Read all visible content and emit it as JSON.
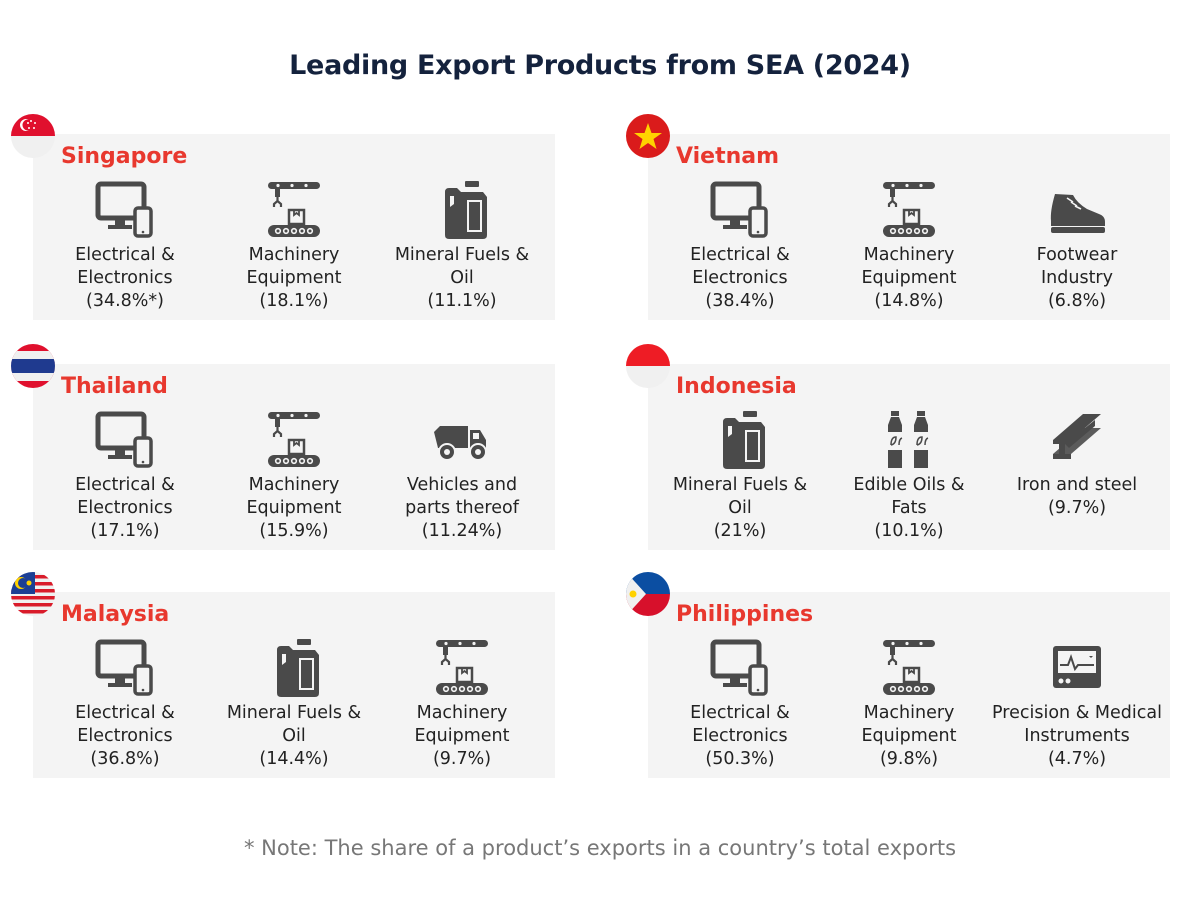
{
  "title": "Leading Export Products from SEA (2024)",
  "note": "* Note: The share of a product’s exports in a country’s total exports",
  "colors": {
    "title": "#14223d",
    "country": "#e8382e",
    "icon": "#4a4a4a",
    "panel": "#f4f4f4",
    "note": "#777777"
  },
  "countries": [
    {
      "name": "Singapore",
      "flag": "singapore",
      "products": [
        {
          "icon": "computer-phone-icon",
          "label": "Electrical &\nElectronics\n(34.8%*)"
        },
        {
          "icon": "conveyor-machinery-icon",
          "label": "Machinery\nEquipment\n(18.1%)"
        },
        {
          "icon": "fuel-canister-icon",
          "label": "Mineral Fuels &\nOil\n(11.1%)"
        }
      ]
    },
    {
      "name": "Vietnam",
      "flag": "vietnam",
      "products": [
        {
          "icon": "computer-phone-icon",
          "label": "Electrical &\nElectronics\n(38.4%)"
        },
        {
          "icon": "conveyor-machinery-icon",
          "label": "Machinery\nEquipment\n(14.8%)"
        },
        {
          "icon": "shoe-icon",
          "label": "Footwear\nIndustry\n(6.8%)"
        }
      ]
    },
    {
      "name": "Thailand",
      "flag": "thailand",
      "products": [
        {
          "icon": "computer-phone-icon",
          "label": "Electrical &\nElectronics\n(17.1%)"
        },
        {
          "icon": "conveyor-machinery-icon",
          "label": "Machinery\nEquipment\n(15.9%)"
        },
        {
          "icon": "dump-truck-icon",
          "label": "Vehicles and\nparts thereof\n(11.24%)"
        }
      ]
    },
    {
      "name": "Indonesia",
      "flag": "indonesia",
      "products": [
        {
          "icon": "fuel-canister-icon",
          "label": "Mineral Fuels &\nOil\n(21%)"
        },
        {
          "icon": "oil-bottles-icon",
          "label": "Edible Oils &\nFats\n(10.1%)"
        },
        {
          "icon": "steel-beam-icon",
          "label": "Iron and steel\n(9.7%)"
        }
      ]
    },
    {
      "name": "Malaysia",
      "flag": "malaysia",
      "products": [
        {
          "icon": "computer-phone-icon",
          "label": "Electrical &\nElectronics\n(36.8%)"
        },
        {
          "icon": "fuel-canister-icon",
          "label": "Mineral Fuels &\nOil\n(14.4%)"
        },
        {
          "icon": "conveyor-machinery-icon",
          "label": "Machinery\nEquipment\n(9.7%)"
        }
      ]
    },
    {
      "name": "Philippines",
      "flag": "philippines",
      "products": [
        {
          "icon": "computer-phone-icon",
          "label": "Electrical &\nElectronics\n(50.3%)"
        },
        {
          "icon": "conveyor-machinery-icon",
          "label": "Machinery\nEquipment\n(9.8%)"
        },
        {
          "icon": "medical-monitor-icon",
          "label": "Precision & Medical\nInstruments\n(4.7%)"
        }
      ]
    }
  ]
}
